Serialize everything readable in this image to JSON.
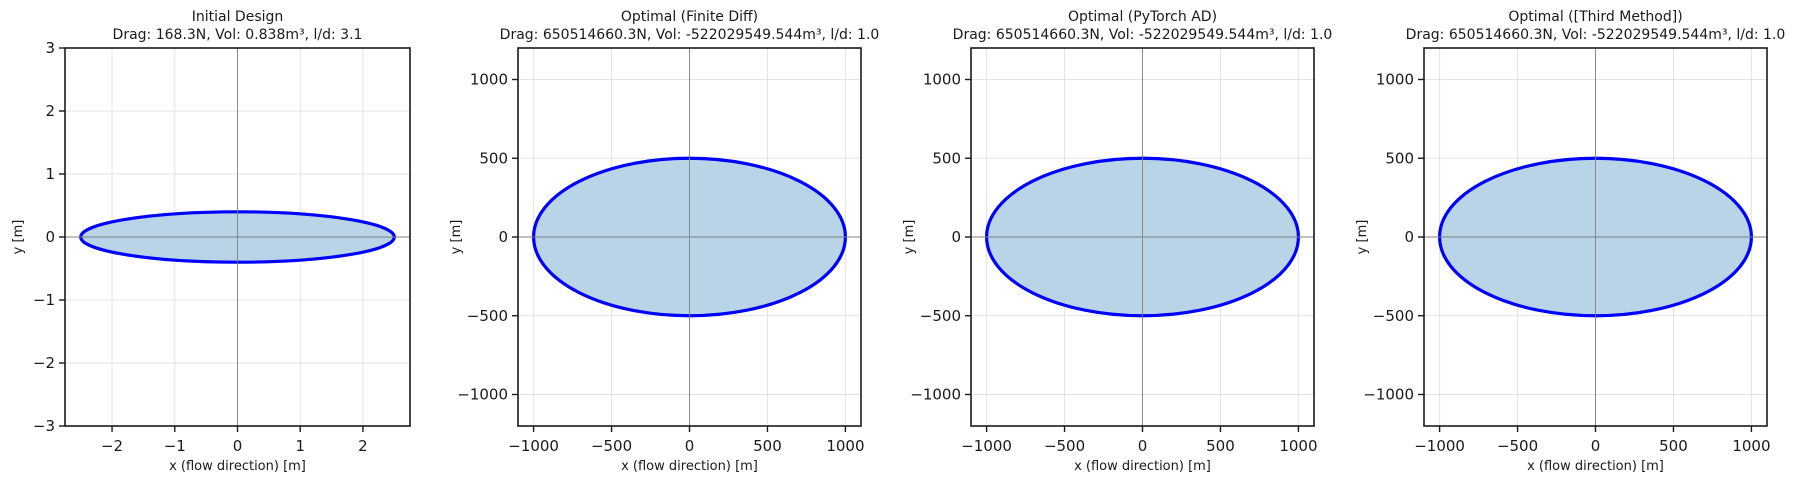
{
  "chart_data": [
    {
      "type": "area",
      "title": "Initial Design",
      "subtitle": "Drag: 168.3N, Vol: 0.838m³, l/d: 3.1",
      "xlabel": "x (flow direction) [m]",
      "ylabel": "y [m]",
      "xlim": [
        -2.75,
        2.75
      ],
      "ylim": [
        -3,
        3
      ],
      "xticks": [
        -2,
        -1,
        0,
        1,
        2
      ],
      "yticks": [
        -3,
        -2,
        -1,
        0,
        1,
        2,
        3
      ],
      "shape": {
        "kind": "ellipse",
        "semi_length": 2.5,
        "semi_height": 0.4
      },
      "grid": true
    },
    {
      "type": "area",
      "title": "Optimal (Finite Diff)",
      "subtitle": "Drag: 650514660.3N, Vol: -522029549.544m³, l/d: 1.0",
      "xlabel": "x (flow direction) [m]",
      "ylabel": "y [m]",
      "xlim": [
        -1100,
        1100
      ],
      "ylim": [
        -1200,
        1200
      ],
      "xticks": [
        -1000,
        -500,
        0,
        500,
        1000
      ],
      "yticks": [
        -1000,
        -500,
        0,
        500,
        1000
      ],
      "shape": {
        "kind": "ellipse",
        "semi_length": 1000,
        "semi_height": 500
      },
      "grid": true
    },
    {
      "type": "area",
      "title": "Optimal (PyTorch AD)",
      "subtitle": "Drag: 650514660.3N, Vol: -522029549.544m³, l/d: 1.0",
      "xlabel": "x (flow direction) [m]",
      "ylabel": "y [m]",
      "xlim": [
        -1100,
        1100
      ],
      "ylim": [
        -1200,
        1200
      ],
      "xticks": [
        -1000,
        -500,
        0,
        500,
        1000
      ],
      "yticks": [
        -1000,
        -500,
        0,
        500,
        1000
      ],
      "shape": {
        "kind": "ellipse",
        "semi_length": 1000,
        "semi_height": 500
      },
      "grid": true
    },
    {
      "type": "area",
      "title": "Optimal ([Third Method])",
      "subtitle": "Drag: 650514660.3N, Vol: -522029549.544m³, l/d: 1.0",
      "xlabel": "x (flow direction) [m]",
      "ylabel": "y [m]",
      "xlim": [
        -1100,
        1100
      ],
      "ylim": [
        -1200,
        1200
      ],
      "xticks": [
        -1000,
        -500,
        0,
        500,
        1000
      ],
      "yticks": [
        -1000,
        -500,
        0,
        500,
        1000
      ],
      "shape": {
        "kind": "ellipse",
        "semi_length": 1000,
        "semi_height": 500
      },
      "grid": true
    }
  ],
  "colors": {
    "outline": "#0000ff",
    "fill": "#b9d4e7",
    "grid": "#e3e3e3",
    "axis_line": "#808080"
  }
}
